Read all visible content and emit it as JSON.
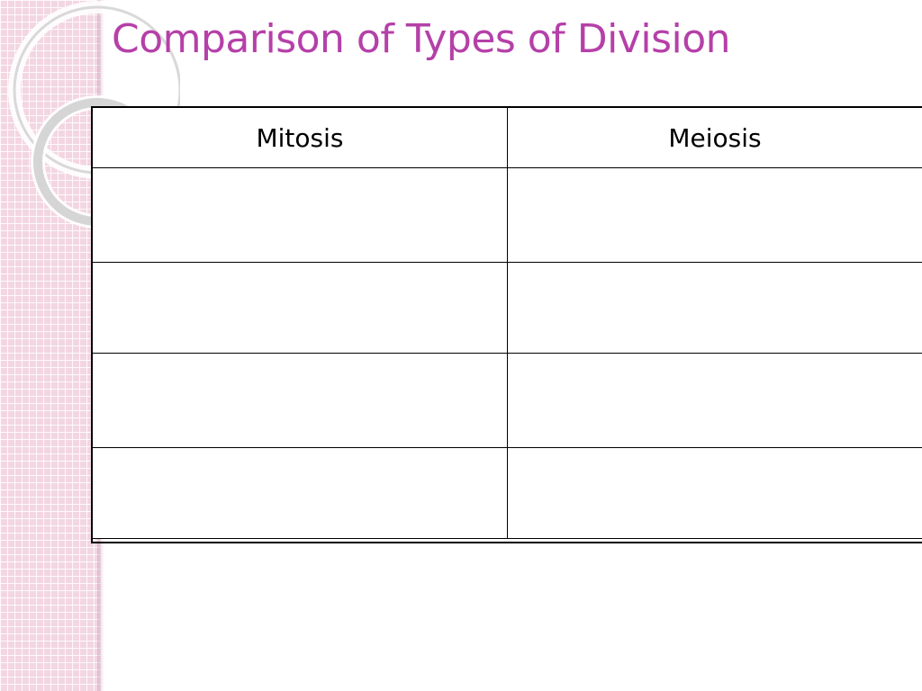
{
  "slide": {
    "title": "Comparison of Types of Division"
  },
  "table": {
    "headers": [
      "Mitosis",
      "Meiosis"
    ],
    "rows": [
      [
        "",
        ""
      ],
      [
        "",
        ""
      ],
      [
        "",
        ""
      ],
      [
        "",
        ""
      ]
    ]
  },
  "colors": {
    "title": "#b540a8",
    "side_band": "#f3d6e2",
    "ring": "#d9d9d9",
    "border": "#000000"
  }
}
